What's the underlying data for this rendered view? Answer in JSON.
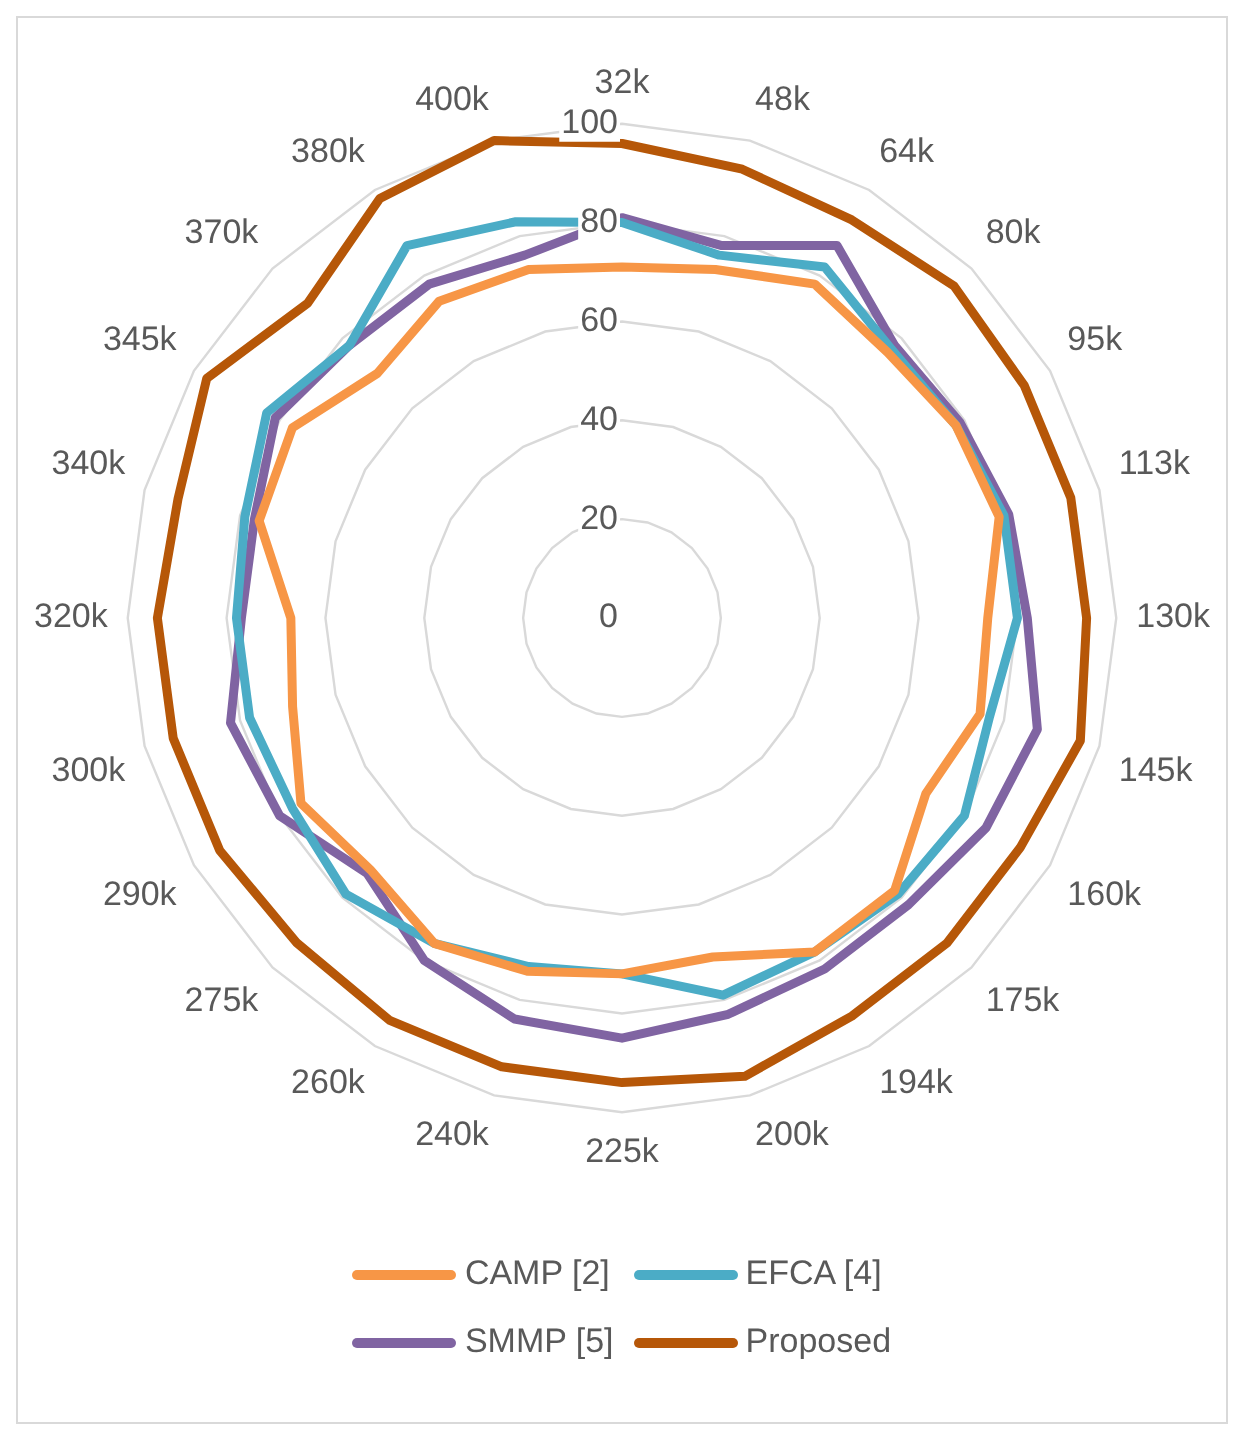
{
  "chart_data": {
    "type": "radar",
    "categories": [
      "32k",
      "48k",
      "64k",
      "80k",
      "95k",
      "113k",
      "130k",
      "145k",
      "160k",
      "175k",
      "194k",
      "200k",
      "225k",
      "240k",
      "260k",
      "275k",
      "290k",
      "300k",
      "320k",
      "340k",
      "345k",
      "370k",
      "380k",
      "400k"
    ],
    "series": [
      {
        "name": "CAMP [2]",
        "color": "#f79646",
        "values": [
          71,
          73,
          78,
          76,
          78,
          79,
          74,
          75,
          71,
          78,
          78,
          71,
          72,
          74,
          76,
          72,
          75,
          69,
          67,
          76,
          77,
          70,
          74,
          73
        ]
      },
      {
        "name": "EFCA [4]",
        "color": "#4bacc6",
        "values": [
          80,
          76,
          82,
          77,
          78,
          80,
          80,
          77,
          80,
          79,
          78,
          79,
          72,
          73,
          76,
          79,
          77,
          78,
          78,
          79,
          83,
          78,
          87,
          83
        ]
      },
      {
        "name": "SMMP [5]",
        "color": "#8064a2",
        "values": [
          81,
          78,
          87,
          78,
          79,
          81,
          82,
          87,
          85,
          82,
          82,
          83,
          85,
          84,
          80,
          73,
          80,
          82,
          77,
          77,
          81,
          78,
          78,
          76
        ]
      },
      {
        "name": "Proposed",
        "color": "#b65708",
        "values": [
          96,
          94,
          93,
          95,
          94,
          94,
          94,
          96,
          93,
          93,
          93,
          96,
          94,
          94,
          94,
          93,
          94,
          94,
          94,
          93,
          97,
          90,
          98,
          100
        ]
      }
    ],
    "ylim": [
      0,
      100
    ],
    "yticks": [
      0,
      20,
      40,
      60,
      80,
      100
    ],
    "grid": true,
    "legend": "bottom",
    "marker": "none",
    "line_style": "solid"
  }
}
